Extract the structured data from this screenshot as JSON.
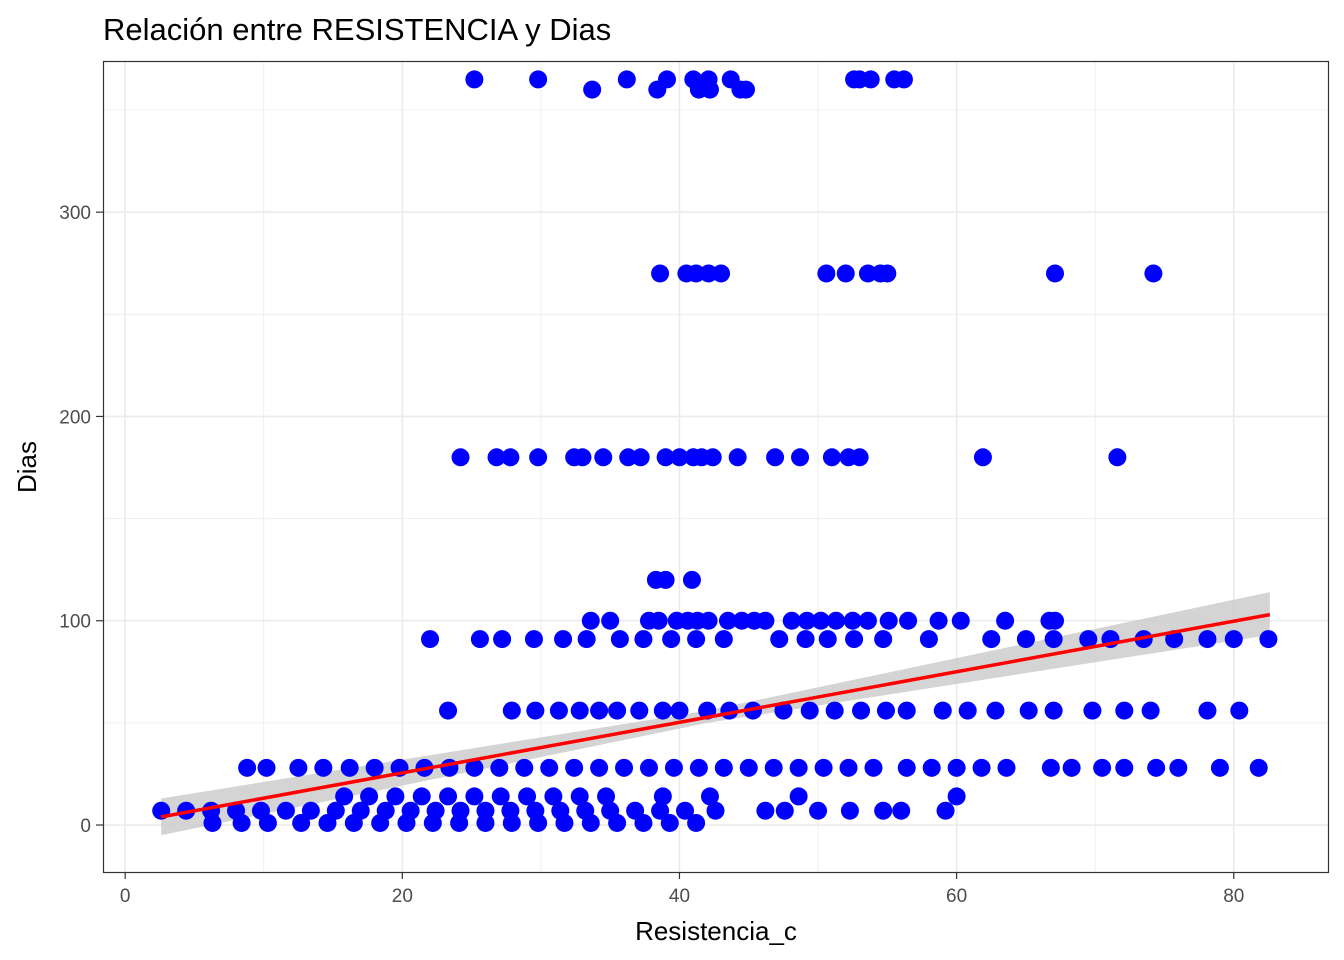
{
  "chart_data": {
    "type": "scatter",
    "title": "Relación entre RESISTENCIA y Dias",
    "xlabel": "Resistencia_c",
    "ylabel": "Dias",
    "xlim": [
      -1.6,
      86.8
    ],
    "ylim": [
      -23,
      374
    ],
    "xticks": [
      0,
      20,
      40,
      60,
      80
    ],
    "yticks": [
      0,
      100,
      200,
      300
    ],
    "grid": true,
    "legend": "none",
    "colors": {
      "points": "#0000ff",
      "fit_line": "#ff0000",
      "ci_band": "#cccccc",
      "grid": "#ebebeb",
      "panel_border": "#333333"
    },
    "series": [
      {
        "values": [
          [
            25.2,
            365
          ],
          [
            29.8,
            365
          ],
          [
            36.2,
            365
          ],
          [
            39.1,
            365
          ],
          [
            41.0,
            365
          ],
          [
            42.1,
            365
          ],
          [
            43.7,
            365
          ],
          [
            52.6,
            365
          ],
          [
            53.0,
            365
          ],
          [
            53.8,
            365
          ],
          [
            55.5,
            365
          ],
          [
            56.2,
            365
          ],
          [
            33.7,
            360
          ],
          [
            38.4,
            360
          ],
          [
            41.4,
            360
          ],
          [
            42.2,
            360
          ],
          [
            44.4,
            360
          ],
          [
            44.8,
            360
          ],
          [
            38.6,
            270
          ],
          [
            40.5,
            270
          ],
          [
            41.2,
            270
          ],
          [
            42.1,
            270
          ],
          [
            43.0,
            270
          ],
          [
            50.6,
            270
          ],
          [
            52.0,
            270
          ],
          [
            53.6,
            270
          ],
          [
            54.5,
            270
          ],
          [
            55.0,
            270
          ],
          [
            67.1,
            270
          ],
          [
            74.2,
            270
          ],
          [
            24.2,
            180
          ],
          [
            26.8,
            180
          ],
          [
            27.8,
            180
          ],
          [
            29.8,
            180
          ],
          [
            32.4,
            180
          ],
          [
            33.0,
            180
          ],
          [
            34.5,
            180
          ],
          [
            36.3,
            180
          ],
          [
            37.2,
            180
          ],
          [
            39.0,
            180
          ],
          [
            40.0,
            180
          ],
          [
            41.0,
            180
          ],
          [
            41.6,
            180
          ],
          [
            42.4,
            180
          ],
          [
            44.2,
            180
          ],
          [
            46.9,
            180
          ],
          [
            48.7,
            180
          ],
          [
            51.0,
            180
          ],
          [
            52.2,
            180
          ],
          [
            53.0,
            180
          ],
          [
            61.9,
            180
          ],
          [
            71.6,
            180
          ],
          [
            38.3,
            120
          ],
          [
            39.0,
            120
          ],
          [
            40.9,
            120
          ],
          [
            33.6,
            100
          ],
          [
            35.0,
            100
          ],
          [
            37.8,
            100
          ],
          [
            38.5,
            100
          ],
          [
            39.8,
            100
          ],
          [
            40.6,
            100
          ],
          [
            41.3,
            100
          ],
          [
            42.1,
            100
          ],
          [
            43.5,
            100
          ],
          [
            44.5,
            100
          ],
          [
            45.4,
            100
          ],
          [
            46.2,
            100
          ],
          [
            48.1,
            100
          ],
          [
            49.2,
            100
          ],
          [
            50.2,
            100
          ],
          [
            51.3,
            100
          ],
          [
            52.5,
            100
          ],
          [
            53.6,
            100
          ],
          [
            55.1,
            100
          ],
          [
            56.5,
            100
          ],
          [
            58.7,
            100
          ],
          [
            60.3,
            100
          ],
          [
            63.5,
            100
          ],
          [
            66.7,
            100
          ],
          [
            67.1,
            100
          ],
          [
            22.0,
            91
          ],
          [
            25.6,
            91
          ],
          [
            27.2,
            91
          ],
          [
            29.5,
            91
          ],
          [
            31.6,
            91
          ],
          [
            33.3,
            91
          ],
          [
            35.7,
            91
          ],
          [
            37.4,
            91
          ],
          [
            39.4,
            91
          ],
          [
            41.2,
            91
          ],
          [
            43.2,
            91
          ],
          [
            47.2,
            91
          ],
          [
            49.1,
            91
          ],
          [
            50.7,
            91
          ],
          [
            52.6,
            91
          ],
          [
            54.7,
            91
          ],
          [
            58.0,
            91
          ],
          [
            62.5,
            91
          ],
          [
            65.0,
            91
          ],
          [
            67.0,
            91
          ],
          [
            69.5,
            91
          ],
          [
            71.1,
            91
          ],
          [
            73.5,
            91
          ],
          [
            75.7,
            91
          ],
          [
            78.1,
            91
          ],
          [
            80.0,
            91
          ],
          [
            82.5,
            91
          ],
          [
            23.3,
            56
          ],
          [
            27.9,
            56
          ],
          [
            29.6,
            56
          ],
          [
            31.3,
            56
          ],
          [
            32.8,
            56
          ],
          [
            34.2,
            56
          ],
          [
            35.5,
            56
          ],
          [
            37.1,
            56
          ],
          [
            38.8,
            56
          ],
          [
            40.0,
            56
          ],
          [
            42.0,
            56
          ],
          [
            43.6,
            56
          ],
          [
            45.3,
            56
          ],
          [
            47.5,
            56
          ],
          [
            49.4,
            56
          ],
          [
            51.2,
            56
          ],
          [
            53.1,
            56
          ],
          [
            54.9,
            56
          ],
          [
            56.4,
            56
          ],
          [
            59.0,
            56
          ],
          [
            60.8,
            56
          ],
          [
            62.8,
            56
          ],
          [
            65.2,
            56
          ],
          [
            67.0,
            56
          ],
          [
            69.8,
            56
          ],
          [
            72.1,
            56
          ],
          [
            74.0,
            56
          ],
          [
            78.1,
            56
          ],
          [
            80.4,
            56
          ],
          [
            8.8,
            28
          ],
          [
            10.2,
            28
          ],
          [
            12.5,
            28
          ],
          [
            14.3,
            28
          ],
          [
            16.2,
            28
          ],
          [
            18.0,
            28
          ],
          [
            19.8,
            28
          ],
          [
            21.6,
            28
          ],
          [
            23.4,
            28
          ],
          [
            25.2,
            28
          ],
          [
            27.0,
            28
          ],
          [
            28.8,
            28
          ],
          [
            30.6,
            28
          ],
          [
            32.4,
            28
          ],
          [
            34.2,
            28
          ],
          [
            36.0,
            28
          ],
          [
            37.8,
            28
          ],
          [
            39.6,
            28
          ],
          [
            41.4,
            28
          ],
          [
            43.2,
            28
          ],
          [
            45.0,
            28
          ],
          [
            46.8,
            28
          ],
          [
            48.6,
            28
          ],
          [
            50.4,
            28
          ],
          [
            52.2,
            28
          ],
          [
            54.0,
            28
          ],
          [
            56.4,
            28
          ],
          [
            58.2,
            28
          ],
          [
            60.0,
            28
          ],
          [
            61.8,
            28
          ],
          [
            63.6,
            28
          ],
          [
            66.8,
            28
          ],
          [
            68.3,
            28
          ],
          [
            70.5,
            28
          ],
          [
            72.1,
            28
          ],
          [
            74.4,
            28
          ],
          [
            76.0,
            28
          ],
          [
            79.0,
            28
          ],
          [
            81.8,
            28
          ],
          [
            15.8,
            14
          ],
          [
            17.6,
            14
          ],
          [
            19.5,
            14
          ],
          [
            21.4,
            14
          ],
          [
            23.3,
            14
          ],
          [
            25.2,
            14
          ],
          [
            27.1,
            14
          ],
          [
            29.0,
            14
          ],
          [
            30.9,
            14
          ],
          [
            32.8,
            14
          ],
          [
            34.7,
            14
          ],
          [
            38.8,
            14
          ],
          [
            42.2,
            14
          ],
          [
            48.6,
            14
          ],
          [
            60.0,
            14
          ],
          [
            2.6,
            7
          ],
          [
            4.4,
            7
          ],
          [
            6.2,
            7
          ],
          [
            8.0,
            7
          ],
          [
            9.8,
            7
          ],
          [
            11.6,
            7
          ],
          [
            13.4,
            7
          ],
          [
            15.2,
            7
          ],
          [
            17.0,
            7
          ],
          [
            18.8,
            7
          ],
          [
            20.6,
            7
          ],
          [
            22.4,
            7
          ],
          [
            24.2,
            7
          ],
          [
            26.0,
            7
          ],
          [
            27.8,
            7
          ],
          [
            29.6,
            7
          ],
          [
            31.4,
            7
          ],
          [
            33.2,
            7
          ],
          [
            35.0,
            7
          ],
          [
            36.8,
            7
          ],
          [
            38.6,
            7
          ],
          [
            40.4,
            7
          ],
          [
            42.6,
            7
          ],
          [
            46.2,
            7
          ],
          [
            47.6,
            7
          ],
          [
            50.0,
            7
          ],
          [
            52.3,
            7
          ],
          [
            54.7,
            7
          ],
          [
            56.0,
            7
          ],
          [
            59.2,
            7
          ],
          [
            6.3,
            1
          ],
          [
            8.4,
            1
          ],
          [
            10.3,
            1
          ],
          [
            12.7,
            1
          ],
          [
            14.6,
            1
          ],
          [
            16.5,
            1
          ],
          [
            18.4,
            1
          ],
          [
            20.3,
            1
          ],
          [
            22.2,
            1
          ],
          [
            24.1,
            1
          ],
          [
            26.0,
            1
          ],
          [
            27.9,
            1
          ],
          [
            29.8,
            1
          ],
          [
            31.7,
            1
          ],
          [
            33.6,
            1
          ],
          [
            35.5,
            1
          ],
          [
            37.4,
            1
          ],
          [
            39.3,
            1
          ],
          [
            41.2,
            1
          ]
        ]
      }
    ],
    "fit_line": {
      "x": [
        2.6,
        82.6
      ],
      "y": [
        4,
        103
      ]
    },
    "ci_band": {
      "x": [
        2.6,
        42,
        82.6
      ],
      "lower": [
        -5,
        50,
        93
      ],
      "upper": [
        13,
        56,
        114
      ]
    }
  }
}
